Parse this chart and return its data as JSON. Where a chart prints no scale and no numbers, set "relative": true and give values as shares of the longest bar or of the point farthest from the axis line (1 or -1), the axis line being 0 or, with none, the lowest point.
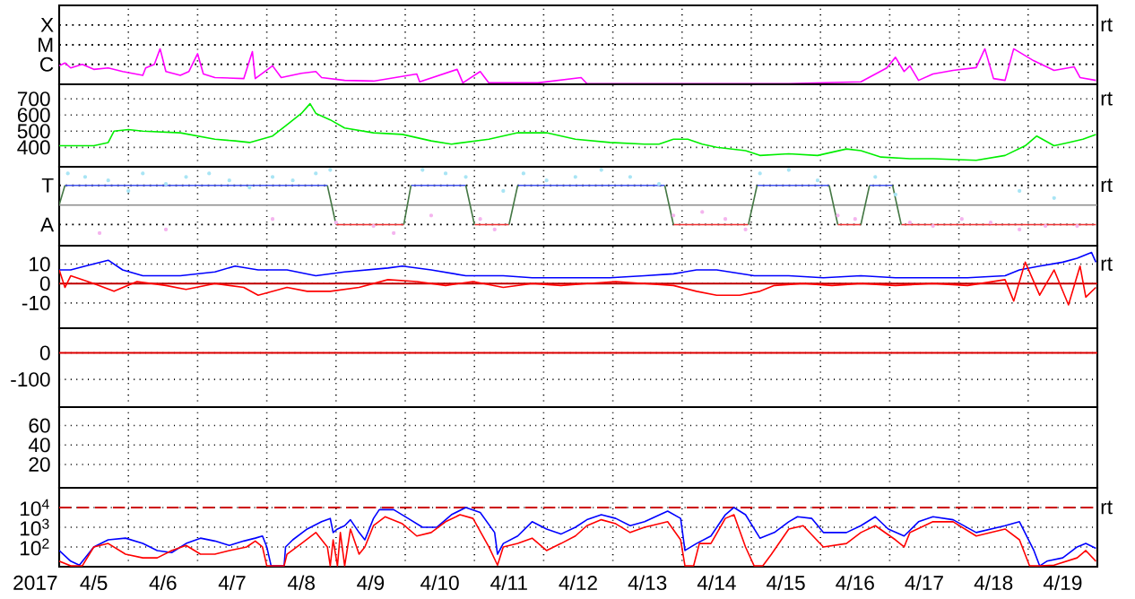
{
  "chart_data": [
    {
      "type": "line",
      "relative": true,
      "grid": "x",
      "tick_labels": "y",
      "xlim": [
        "2017-04-05",
        "2017-04-20"
      ],
      "xticks": [
        {
          "value": "2017-04-06",
          "label": null
        },
        {
          "value": "2017-04-07",
          "label": null
        },
        {
          "value": "2017-04-08",
          "label": null
        },
        {
          "value": "2017-04-09",
          "label": null
        },
        {
          "value": "2017-04-10",
          "label": null
        },
        {
          "value": "2017-04-11",
          "label": null
        },
        {
          "value": "2017-04-12",
          "label": null
        },
        {
          "value": "2017-04-13",
          "label": null
        },
        {
          "value": "2017-04-14",
          "label": null
        },
        {
          "value": "2017-04-15",
          "label": null
        },
        {
          "value": "2017-04-16",
          "label": null
        },
        {
          "value": "2017-04-17",
          "label": null
        },
        {
          "value": "2017-04-18",
          "label": null
        },
        {
          "value": "2017-04-19",
          "label": null
        }
      ],
      "annotations": [
        "rt"
      ],
      "ref_lines": [
        {
          "axis": "y",
          "value": 0.56,
          "label": "C",
          "color": "#000000",
          "line_style": "dotted"
        },
        {
          "axis": "y",
          "value": 1.11,
          "label": "M",
          "color": "#000000",
          "line_style": "dotted"
        },
        {
          "axis": "y",
          "value": 1.67,
          "label": "X",
          "color": "#000000",
          "line_style": "dotted"
        }
      ],
      "series": [
        {
          "color": "#ff00ff",
          "x": [
            "2017-04-05T00:00",
            "2017-04-05T02:00",
            "2017-04-05T04:00",
            "2017-04-05T08:00",
            "2017-04-05T12:00",
            "2017-04-05T17:00",
            "2017-04-05T22:00",
            "2017-04-06T05:00",
            "2017-04-06T06:00",
            "2017-04-06T09:00",
            "2017-04-06T11:00",
            "2017-04-06T13:00",
            "2017-04-06T18:00",
            "2017-04-06T21:00",
            "2017-04-07T00:00",
            "2017-04-07T02:00",
            "2017-04-07T06:00",
            "2017-04-07T16:00",
            "2017-04-07T19:00",
            "2017-04-07T20:00",
            "2017-04-08T02:00",
            "2017-04-08T05:00",
            "2017-04-08T12:00",
            "2017-04-08T17:00",
            "2017-04-08T19:00",
            "2017-04-09T03:00",
            "2017-04-09T13:00",
            "2017-04-10T04:00",
            "2017-04-10T05:00",
            "2017-04-10T18:00",
            "2017-04-10T20:00",
            "2017-04-11T02:00",
            "2017-04-11T05:00",
            "2017-04-11T22:00",
            "2017-04-12T13:00",
            "2017-04-12T15:00",
            "2017-04-13T11:00",
            "2017-04-15T13:00",
            "2017-04-16T14:00",
            "2017-04-16T23:00",
            "2017-04-17T02:00",
            "2017-04-17T05:00",
            "2017-04-17T07:00",
            "2017-04-17T10:00",
            "2017-04-17T15:00",
            "2017-04-17T22:00",
            "2017-04-18T06:00",
            "2017-04-18T09:00",
            "2017-04-18T12:00",
            "2017-04-18T16:00",
            "2017-04-18T19:00",
            "2017-04-19T02:00",
            "2017-04-19T09:00",
            "2017-04-19T16:00",
            "2017-04-19T18:00",
            "2017-04-19T23:30"
          ],
          "values": [
            0.52,
            0.6,
            0.46,
            0.56,
            0.42,
            0.46,
            0.36,
            0.25,
            0.46,
            0.56,
            1,
            0.36,
            0.25,
            0.36,
            0.86,
            0.29,
            0.19,
            0.16,
            0.92,
            0.16,
            0.52,
            0.19,
            0.31,
            0.36,
            0.19,
            0.11,
            0.09,
            0.29,
            0.07,
            0.42,
            0.04,
            0.36,
            0.04,
            0.04,
            0.19,
            0.02,
            0.02,
            0.02,
            0.07,
            0.46,
            0.76,
            0.36,
            0.52,
            0.11,
            0.29,
            0.39,
            0.47,
            1,
            0.16,
            0.11,
            1,
            0.66,
            0.39,
            0.49,
            0.19,
            0.11
          ]
        }
      ]
    },
    {
      "type": "line",
      "grid": true,
      "tick_labels": "y",
      "xlim": [
        "2017-04-05",
        "2017-04-20"
      ],
      "ylim": [
        280,
        790
      ],
      "xticks": [
        {
          "value": "2017-04-06",
          "label": null
        },
        {
          "value": "2017-04-07",
          "label": null
        },
        {
          "value": "2017-04-08",
          "label": null
        },
        {
          "value": "2017-04-09",
          "label": null
        },
        {
          "value": "2017-04-10",
          "label": null
        },
        {
          "value": "2017-04-11",
          "label": null
        },
        {
          "value": "2017-04-12",
          "label": null
        },
        {
          "value": "2017-04-13",
          "label": null
        },
        {
          "value": "2017-04-14",
          "label": null
        },
        {
          "value": "2017-04-15",
          "label": null
        },
        {
          "value": "2017-04-16",
          "label": null
        },
        {
          "value": "2017-04-17",
          "label": null
        },
        {
          "value": "2017-04-18",
          "label": null
        },
        {
          "value": "2017-04-19",
          "label": null
        }
      ],
      "yticks": [
        400,
        500,
        600,
        700
      ],
      "annotations": [
        "rt"
      ],
      "series": [
        {
          "color": "#00ee00",
          "x": [
            "2017-04-05T00:00",
            "2017-04-05T12:00",
            "2017-04-05T17:00",
            "2017-04-05T19:00",
            "2017-04-06T00:00",
            "2017-04-06T05:00",
            "2017-04-06T18:00",
            "2017-04-07T06:00",
            "2017-04-07T13:00",
            "2017-04-07T18:00",
            "2017-04-08T02:00",
            "2017-04-08T07:00",
            "2017-04-08T12:00",
            "2017-04-08T15:00",
            "2017-04-08T17:00",
            "2017-04-08T22:00",
            "2017-04-09T03:00",
            "2017-04-09T13:00",
            "2017-04-09T23:00",
            "2017-04-10T09:00",
            "2017-04-10T16:00",
            "2017-04-11T05:00",
            "2017-04-11T15:00",
            "2017-04-12T01:00",
            "2017-04-12T11:00",
            "2017-04-12T23:00",
            "2017-04-13T11:00",
            "2017-04-13T16:00",
            "2017-04-13T21:00",
            "2017-04-14T02:00",
            "2017-04-14T07:00",
            "2017-04-14T12:00",
            "2017-04-14T22:00",
            "2017-04-15T03:00",
            "2017-04-15T13:00",
            "2017-04-15T23:00",
            "2017-04-16T09:00",
            "2017-04-16T14:00",
            "2017-04-16T21:00",
            "2017-04-17T07:00",
            "2017-04-17T15:00",
            "2017-04-18T06:00",
            "2017-04-18T16:00",
            "2017-04-18T23:00",
            "2017-04-19T03:00",
            "2017-04-19T09:00",
            "2017-04-19T14:00",
            "2017-04-19T19:00",
            "2017-04-19T23:30"
          ],
          "values": [
            410,
            410,
            430,
            500,
            510,
            500,
            490,
            450,
            440,
            430,
            470,
            540,
            610,
            670,
            610,
            570,
            520,
            490,
            480,
            440,
            420,
            450,
            490,
            490,
            450,
            430,
            420,
            420,
            450,
            450,
            420,
            400,
            380,
            350,
            360,
            350,
            390,
            380,
            340,
            330,
            330,
            320,
            350,
            410,
            470,
            410,
            430,
            450,
            480
          ]
        }
      ]
    },
    {
      "type": "line",
      "relative": true,
      "grid": "x",
      "tick_labels": "y",
      "xlim": [
        "2017-04-05",
        "2017-04-20"
      ],
      "xticks": [
        {
          "value": "2017-04-06",
          "label": null
        },
        {
          "value": "2017-04-07",
          "label": null
        },
        {
          "value": "2017-04-08",
          "label": null
        },
        {
          "value": "2017-04-09",
          "label": null
        },
        {
          "value": "2017-04-10",
          "label": null
        },
        {
          "value": "2017-04-11",
          "label": null
        },
        {
          "value": "2017-04-12",
          "label": null
        },
        {
          "value": "2017-04-13",
          "label": null
        },
        {
          "value": "2017-04-14",
          "label": null
        },
        {
          "value": "2017-04-15",
          "label": null
        },
        {
          "value": "2017-04-16",
          "label": null
        },
        {
          "value": "2017-04-17",
          "label": null
        },
        {
          "value": "2017-04-18",
          "label": null
        },
        {
          "value": "2017-04-19",
          "label": null
        }
      ],
      "annotations": [
        "rt"
      ],
      "ref_lines": [
        {
          "axis": "y",
          "value": -0.56,
          "label": "A",
          "color": "#000000",
          "line_style": "dotted"
        },
        {
          "axis": "y",
          "value": 0.56,
          "label": "T",
          "color": "#000000",
          "line_style": "dotted"
        },
        {
          "axis": "y",
          "value": 0,
          "color": "#909090"
        }
      ],
      "series": [
        {
          "type": "scatter",
          "color": "#a8e4f4",
          "x": [
            "2017-04-05T03:00",
            "2017-04-05T09:00",
            "2017-04-05T17:00",
            "2017-04-06T00:00",
            "2017-04-06T05:00",
            "2017-04-06T13:00",
            "2017-04-06T20:00",
            "2017-04-07T04:00",
            "2017-04-07T11:00",
            "2017-04-07T18:00",
            "2017-04-08T02:00",
            "2017-04-08T09:00",
            "2017-04-08T17:00",
            "2017-04-08T22:00",
            "2017-04-10T06:00",
            "2017-04-10T14:00",
            "2017-04-10T21:00",
            "2017-04-11T10:00",
            "2017-04-11T17:00",
            "2017-04-12T01:00",
            "2017-04-12T11:00",
            "2017-04-12T20:00",
            "2017-04-13T06:00",
            "2017-04-13T16:00",
            "2017-04-15T03:00",
            "2017-04-15T13:00",
            "2017-04-15T23:00",
            "2017-04-16T19:00",
            "2017-04-17T02:00",
            "2017-04-18T21:00",
            "2017-04-19T09:00"
          ],
          "values": [
            0.9,
            0.8,
            0.7,
            0.4,
            0.9,
            0.6,
            0.8,
            0.9,
            0.7,
            0.5,
            0.8,
            0.7,
            0.9,
            1,
            1,
            0.9,
            0.8,
            0.4,
            0.9,
            0.7,
            0.8,
            1,
            0.8,
            0.6,
            0.9,
            1,
            0.7,
            0.8,
            0.3,
            0.4,
            0.2
          ]
        },
        {
          "type": "scatter",
          "color": "#f4b4ee",
          "x": [
            "2017-04-05T14:00",
            "2017-04-06T13:00",
            "2017-04-08T02:00",
            "2017-04-09T00:00",
            "2017-04-09T13:00",
            "2017-04-09T20:00",
            "2017-04-10T09:00",
            "2017-04-11T02:00",
            "2017-04-11T07:00",
            "2017-04-13T21:00",
            "2017-04-14T07:00",
            "2017-04-14T15:00",
            "2017-04-14T22:00",
            "2017-04-16T06:00",
            "2017-04-16T12:00",
            "2017-04-17T07:00",
            "2017-04-17T15:00",
            "2017-04-18T01:00",
            "2017-04-18T11:00",
            "2017-04-18T21:00",
            "2017-04-19T06:00",
            "2017-04-19T17:00"
          ],
          "values": [
            -0.8,
            -0.7,
            -0.4,
            -0.5,
            -0.6,
            -0.8,
            -0.3,
            -0.4,
            -0.7,
            -0.3,
            -0.2,
            -0.4,
            -0.7,
            -0.3,
            -0.4,
            -0.5,
            -0.6,
            -0.4,
            -0.5,
            -0.7,
            -0.6,
            -0.6
          ]
        },
        {
          "color": "#4455ee",
          "x": [
            "2017-04-05T02:00",
            "2017-04-08T21:00",
            "2017-04-08T22:00",
            "2017-04-10T02:00",
            "2017-04-10T21:00",
            "2017-04-10T22:00",
            "2017-04-11T15:00",
            "2017-04-13T18:00",
            "2017-04-13T19:00",
            "2017-04-15T02:00",
            "2017-04-16T03:00",
            "2017-04-16T04:00",
            "2017-04-16T17:00",
            "2017-04-17T01:00"
          ],
          "values": [
            0.56,
            0.56,
            null,
            0.56,
            0.56,
            null,
            0.56,
            0.56,
            null,
            0.56,
            0.56,
            null,
            0.56,
            0.56
          ]
        },
        {
          "color": "#ee3333",
          "x": [
            "2017-04-09T00:00",
            "2017-04-09T23:30",
            "2017-04-10T00:00",
            "2017-04-11T00:00",
            "2017-04-11T12:00",
            "2017-04-11T12:30",
            "2017-04-13T21:00",
            "2017-04-14T23:00",
            "2017-04-15T00:00",
            "2017-04-16T06:00",
            "2017-04-16T14:00",
            "2017-04-16T14:30",
            "2017-04-17T04:00",
            "2017-04-19T23:30"
          ],
          "values": [
            -0.56,
            -0.56,
            null,
            -0.56,
            -0.56,
            null,
            -0.56,
            -0.56,
            null,
            -0.56,
            -0.56,
            null,
            -0.56,
            -0.56
          ]
        },
        {
          "color": "#447744",
          "x": [
            "2017-04-05T00:00",
            "2017-04-05T02:00",
            "2017-04-05T03:00",
            "2017-04-08T21:00",
            "2017-04-09T00:00",
            "2017-04-09T12:00",
            "2017-04-09T23:30",
            "2017-04-10T02:00",
            "2017-04-10T12:00",
            "2017-04-10T21:00",
            "2017-04-11T00:00",
            "2017-04-11T05:00",
            "2017-04-11T12:00",
            "2017-04-11T15:00",
            "2017-04-12T00:00",
            "2017-04-13T18:00",
            "2017-04-13T21:00",
            "2017-04-14T00:00",
            "2017-04-14T23:00",
            "2017-04-15T02:00",
            "2017-04-15T12:00",
            "2017-04-16T03:00",
            "2017-04-16T06:00",
            "2017-04-16T10:00",
            "2017-04-16T14:00",
            "2017-04-16T17:00",
            "2017-04-16T22:00",
            "2017-04-17T01:00",
            "2017-04-17T04:00"
          ],
          "values": [
            0,
            0.56,
            null,
            0.56,
            -0.56,
            null,
            -0.56,
            0.56,
            null,
            0.56,
            -0.56,
            null,
            -0.56,
            0.56,
            null,
            0.56,
            -0.56,
            null,
            -0.56,
            0.56,
            null,
            0.56,
            -0.56,
            null,
            -0.56,
            0.56,
            null,
            0.56,
            -0.56
          ]
        }
      ]
    },
    {
      "type": "line",
      "grid": true,
      "tick_labels": "y",
      "xlim": [
        "2017-04-05",
        "2017-04-20"
      ],
      "ylim": [
        -23,
        19.5
      ],
      "xticks": [
        {
          "value": "2017-04-06",
          "label": null
        },
        {
          "value": "2017-04-07",
          "label": null
        },
        {
          "value": "2017-04-08",
          "label": null
        },
        {
          "value": "2017-04-09",
          "label": null
        },
        {
          "value": "2017-04-10",
          "label": null
        },
        {
          "value": "2017-04-11",
          "label": null
        },
        {
          "value": "2017-04-12",
          "label": null
        },
        {
          "value": "2017-04-13",
          "label": null
        },
        {
          "value": "2017-04-14",
          "label": null
        },
        {
          "value": "2017-04-15",
          "label": null
        },
        {
          "value": "2017-04-16",
          "label": null
        },
        {
          "value": "2017-04-17",
          "label": null
        },
        {
          "value": "2017-04-18",
          "label": null
        },
        {
          "value": "2017-04-19",
          "label": null
        }
      ],
      "yticks": [
        -10,
        0,
        10
      ],
      "annotations": [
        "rt"
      ],
      "ref_lines": [
        {
          "axis": "y",
          "value": 0,
          "color": "#c00000"
        }
      ],
      "series": [
        {
          "color": "#0000ff",
          "x": [
            "2017-04-05T00:00",
            "2017-04-05T04:00",
            "2017-04-05T09:00",
            "2017-04-05T17:00",
            "2017-04-05T22:00",
            "2017-04-06T05:00",
            "2017-04-06T18:00",
            "2017-04-07T06:00",
            "2017-04-07T13:00",
            "2017-04-07T21:00",
            "2017-04-08T07:00",
            "2017-04-08T17:00",
            "2017-04-09T03:00",
            "2017-04-09T18:00",
            "2017-04-09T23:00",
            "2017-04-10T09:00",
            "2017-04-10T21:00",
            "2017-04-11T10:00",
            "2017-04-11T20:00",
            "2017-04-12T11:00",
            "2017-04-12T23:00",
            "2017-04-13T11:00",
            "2017-04-13T21:00",
            "2017-04-14T05:00",
            "2017-04-14T12:00",
            "2017-04-15T01:00",
            "2017-04-15T13:00",
            "2017-04-16T01:00",
            "2017-04-16T14:00",
            "2017-04-17T02:00",
            "2017-04-17T15:00",
            "2017-04-18T03:00",
            "2017-04-18T16:00",
            "2017-04-18T21:00",
            "2017-04-19T04:00",
            "2017-04-19T12:00",
            "2017-04-19T17:00",
            "2017-04-19T22:00",
            "2017-04-19T23:30"
          ],
          "values": [
            7,
            7,
            9,
            12,
            7,
            4,
            4,
            6,
            9,
            7,
            7,
            4,
            6,
            8,
            9,
            7,
            4,
            4,
            3,
            3,
            3,
            4,
            5,
            7,
            7,
            4,
            4,
            3,
            4,
            3,
            3,
            3,
            4,
            7,
            9,
            11,
            13,
            16,
            11
          ]
        },
        {
          "color": "#ff0000",
          "x": [
            "2017-04-05T00:00",
            "2017-04-05T02:00",
            "2017-04-05T04:00",
            "2017-04-05T12:00",
            "2017-04-05T19:00",
            "2017-04-06T03:00",
            "2017-04-06T13:00",
            "2017-04-06T20:00",
            "2017-04-07T06:00",
            "2017-04-07T16:00",
            "2017-04-07T21:00",
            "2017-04-08T07:00",
            "2017-04-08T14:00",
            "2017-04-08T22:00",
            "2017-04-09T08:00",
            "2017-04-09T18:00",
            "2017-04-10T04:00",
            "2017-04-10T14:00",
            "2017-04-10T23:30",
            "2017-04-11T10:00",
            "2017-04-11T20:00",
            "2017-04-12T06:00",
            "2017-04-12T15:00",
            "2017-04-13T01:00",
            "2017-04-13T11:00",
            "2017-04-13T21:00",
            "2017-04-14T05:00",
            "2017-04-14T12:00",
            "2017-04-14T20:00",
            "2017-04-15T03:00",
            "2017-04-15T08:00",
            "2017-04-15T18:00",
            "2017-04-16T04:00",
            "2017-04-16T14:00",
            "2017-04-17T02:00",
            "2017-04-17T15:00",
            "2017-04-18T03:00",
            "2017-04-18T16:00",
            "2017-04-18T19:00",
            "2017-04-18T23:00",
            "2017-04-19T04:00",
            "2017-04-19T09:00",
            "2017-04-19T14:00",
            "2017-04-19T18:00",
            "2017-04-19T20:00",
            "2017-04-19T23:30"
          ],
          "values": [
            7,
            -2,
            4,
            0,
            -4,
            1,
            -1,
            -3,
            0,
            -2,
            -6,
            -2,
            -4,
            -4,
            -2,
            2,
            1,
            -1,
            1,
            -2,
            0,
            -1,
            0,
            1,
            0,
            -1,
            -4,
            -6,
            -6,
            -4,
            -1,
            0,
            -1,
            0,
            -1,
            0,
            -1,
            2,
            -9,
            11,
            -6,
            7,
            -11,
            9,
            -7,
            -2
          ]
        }
      ]
    },
    {
      "type": "line",
      "grid": true,
      "tick_labels": "y",
      "xlim": [
        "2017-04-05",
        "2017-04-20"
      ],
      "ylim": [
        -204,
        93
      ],
      "xticks": [
        {
          "value": "2017-04-06",
          "label": null
        },
        {
          "value": "2017-04-07",
          "label": null
        },
        {
          "value": "2017-04-08",
          "label": null
        },
        {
          "value": "2017-04-09",
          "label": null
        },
        {
          "value": "2017-04-10",
          "label": null
        },
        {
          "value": "2017-04-11",
          "label": null
        },
        {
          "value": "2017-04-12",
          "label": null
        },
        {
          "value": "2017-04-13",
          "label": null
        },
        {
          "value": "2017-04-14",
          "label": null
        },
        {
          "value": "2017-04-15",
          "label": null
        },
        {
          "value": "2017-04-16",
          "label": null
        },
        {
          "value": "2017-04-17",
          "label": null
        },
        {
          "value": "2017-04-18",
          "label": null
        },
        {
          "value": "2017-04-19",
          "label": null
        }
      ],
      "yticks": [
        -100,
        0
      ],
      "ref_lines": [
        {
          "axis": "y",
          "value": 0,
          "color": "#dd0000"
        }
      ]
    },
    {
      "type": "line",
      "grid": true,
      "tick_labels": "y",
      "xlim": [
        "2017-04-05",
        "2017-04-20"
      ],
      "ylim": [
        -4,
        79
      ],
      "xticks": [
        {
          "value": "2017-04-06",
          "label": null
        },
        {
          "value": "2017-04-07",
          "label": null
        },
        {
          "value": "2017-04-08",
          "label": null
        },
        {
          "value": "2017-04-09",
          "label": null
        },
        {
          "value": "2017-04-10",
          "label": null
        },
        {
          "value": "2017-04-11",
          "label": null
        },
        {
          "value": "2017-04-12",
          "label": null
        },
        {
          "value": "2017-04-13",
          "label": null
        },
        {
          "value": "2017-04-14",
          "label": null
        },
        {
          "value": "2017-04-15",
          "label": null
        },
        {
          "value": "2017-04-16",
          "label": null
        },
        {
          "value": "2017-04-17",
          "label": null
        },
        {
          "value": "2017-04-18",
          "label": null
        },
        {
          "value": "2017-04-19",
          "label": null
        }
      ],
      "yticks": [
        20,
        40,
        60
      ]
    },
    {
      "type": "line",
      "log": true,
      "grid": true,
      "xlim": [
        "2017-04-05",
        "2017-04-20"
      ],
      "ylim": [
        10,
        100000
      ],
      "xlabel": "2017",
      "xticks": [
        {
          "value": "2017-04-05T12:00",
          "label": "4/5"
        },
        {
          "value": "2017-04-06",
          "label": null
        },
        {
          "value": "2017-04-06T12:00",
          "label": "4/6"
        },
        {
          "value": "2017-04-07",
          "label": null
        },
        {
          "value": "2017-04-07T12:00",
          "label": "4/7"
        },
        {
          "value": "2017-04-08",
          "label": null
        },
        {
          "value": "2017-04-08T12:00",
          "label": "4/8"
        },
        {
          "value": "2017-04-09",
          "label": null
        },
        {
          "value": "2017-04-09T12:00",
          "label": "4/9"
        },
        {
          "value": "2017-04-10",
          "label": null
        },
        {
          "value": "2017-04-10T12:00",
          "label": "4/10"
        },
        {
          "value": "2017-04-11",
          "label": null
        },
        {
          "value": "2017-04-11T12:00",
          "label": "4/11"
        },
        {
          "value": "2017-04-12",
          "label": null
        },
        {
          "value": "2017-04-12T12:00",
          "label": "4/12"
        },
        {
          "value": "2017-04-13",
          "label": null
        },
        {
          "value": "2017-04-13T12:00",
          "label": "4/13"
        },
        {
          "value": "2017-04-14",
          "label": null
        },
        {
          "value": "2017-04-14T12:00",
          "label": "4/14"
        },
        {
          "value": "2017-04-15",
          "label": null
        },
        {
          "value": "2017-04-15T12:00",
          "label": "4/15"
        },
        {
          "value": "2017-04-16",
          "label": null
        },
        {
          "value": "2017-04-16T12:00",
          "label": "4/16"
        },
        {
          "value": "2017-04-17",
          "label": null
        },
        {
          "value": "2017-04-17T12:00",
          "label": "4/17"
        },
        {
          "value": "2017-04-18",
          "label": null
        },
        {
          "value": "2017-04-18T12:00",
          "label": "4/18"
        },
        {
          "value": "2017-04-19",
          "label": null
        },
        {
          "value": "2017-04-19T12:00",
          "label": "4/19"
        }
      ],
      "yticks": [
        {
          "value": 100,
          "label": "10$^{2}$"
        },
        {
          "value": 1000,
          "label": "10$^{3}$"
        },
        {
          "value": 10000,
          "label": "10$^{4}$"
        }
      ],
      "annotations": [
        "rt"
      ],
      "ref_lines": [
        {
          "axis": "y",
          "value": 10000,
          "color": "#cc0000",
          "line_style": "dashed"
        }
      ],
      "series": [
        {
          "color": "#0000ff",
          "x": [
            "2017-04-05T00:00",
            "2017-04-05T04:00",
            "2017-04-05T07:00",
            "2017-04-05T12:00",
            "2017-04-05T17:00",
            "2017-04-05T23:00",
            "2017-04-06T05:00",
            "2017-04-06T10:00",
            "2017-04-06T15:00",
            "2017-04-06T20:00",
            "2017-04-07T01:00",
            "2017-04-07T06:00",
            "2017-04-07T11:00",
            "2017-04-07T16:00",
            "2017-04-07T20:00",
            "2017-04-07T22:30",
            "2017-04-08T00:00",
            "2017-04-08T01:30",
            "2017-04-08T06:00",
            "2017-04-08T06:30",
            "2017-04-08T09:00",
            "2017-04-08T14:00",
            "2017-04-08T19:00",
            "2017-04-08T22:00",
            "2017-04-08T23:00",
            "2017-04-09T00:30",
            "2017-04-09T03:00",
            "2017-04-09T05:00",
            "2017-04-09T08:00",
            "2017-04-09T10:00",
            "2017-04-09T13:00",
            "2017-04-09T15:00",
            "2017-04-09T20:00",
            "2017-04-10T01:00",
            "2017-04-10T06:00",
            "2017-04-10T11:00",
            "2017-04-10T16:00",
            "2017-04-10T21:00",
            "2017-04-11T02:00",
            "2017-04-11T07:00",
            "2017-04-11T08:00",
            "2017-04-11T10:00",
            "2017-04-11T15:00",
            "2017-04-11T20:00",
            "2017-04-12T01:00",
            "2017-04-12T06:00",
            "2017-04-12T11:00",
            "2017-04-12T15:00",
            "2017-04-12T20:00",
            "2017-04-13T01:00",
            "2017-04-13T06:00",
            "2017-04-13T11:00",
            "2017-04-13T19:00",
            "2017-04-13T23:30",
            "2017-04-14T01:00",
            "2017-04-14T05:00",
            "2017-04-14T10:00",
            "2017-04-14T15:00",
            "2017-04-14T18:00",
            "2017-04-14T22:00",
            "2017-04-15T03:00",
            "2017-04-15T08:00",
            "2017-04-15T13:00",
            "2017-04-15T16:00",
            "2017-04-15T21:00",
            "2017-04-16T01:00",
            "2017-04-16T09:00",
            "2017-04-16T14:00",
            "2017-04-16T19:00",
            "2017-04-16T23:30",
            "2017-04-17T05:00",
            "2017-04-17T10:00",
            "2017-04-17T15:00",
            "2017-04-17T22:00",
            "2017-04-18T06:00",
            "2017-04-18T16:00",
            "2017-04-18T21:00",
            "2017-04-19T02:00",
            "2017-04-19T04:00",
            "2017-04-19T06:30",
            "2017-04-19T12:00",
            "2017-04-19T17:00",
            "2017-04-19T20:00",
            "2017-04-19T23:30"
          ],
          "values": [
            66,
            19,
            12,
            100,
            230,
            280,
            150,
            66,
            52,
            150,
            280,
            200,
            120,
            200,
            280,
            360,
            100,
            11,
            11,
            100,
            230,
            810,
            1900,
            2800,
            540,
            810,
            1200,
            2400,
            540,
            230,
            2800,
            7800,
            7800,
            2800,
            1000,
            1000,
            4300,
            10000,
            5600,
            540,
            43,
            150,
            360,
            1900,
            810,
            450,
            1000,
            2400,
            4300,
            2800,
            1200,
            1900,
            6600,
            2800,
            66,
            150,
            360,
            4300,
            10000,
            4300,
            280,
            540,
            1900,
            3400,
            2800,
            540,
            540,
            1200,
            3400,
            810,
            360,
            1900,
            3400,
            2400,
            540,
            1200,
            1900,
            66,
            11,
            19,
            28,
            100,
            150,
            85
          ]
        },
        {
          "color": "#ff0000",
          "x": [
            "2017-04-05T00:00",
            "2017-04-05T04:00",
            "2017-04-05T08:00",
            "2017-04-05T12:00",
            "2017-04-05T17:00",
            "2017-04-05T23:00",
            "2017-04-06T05:00",
            "2017-04-06T10:00",
            "2017-04-06T15:00",
            "2017-04-06T20:00",
            "2017-04-07T01:00",
            "2017-04-07T06:00",
            "2017-04-07T11:00",
            "2017-04-07T17:00",
            "2017-04-07T20:00",
            "2017-04-07T22:30",
            "2017-04-08T00:00",
            "2017-04-08T06:00",
            "2017-04-08T07:00",
            "2017-04-08T12:00",
            "2017-04-08T17:00",
            "2017-04-08T21:00",
            "2017-04-08T22:00",
            "2017-04-08T23:00",
            "2017-04-09T00:30",
            "2017-04-09T01:30",
            "2017-04-09T03:00",
            "2017-04-09T05:00",
            "2017-04-09T08:00",
            "2017-04-09T10:00",
            "2017-04-09T13:00",
            "2017-04-09T17:00",
            "2017-04-09T23:00",
            "2017-04-10T04:00",
            "2017-04-10T09:00",
            "2017-04-10T14:00",
            "2017-04-10T19:00",
            "2017-04-10T23:30",
            "2017-04-11T05:00",
            "2017-04-11T08:00",
            "2017-04-11T10:00",
            "2017-04-11T15:00",
            "2017-04-11T20:00",
            "2017-04-12T01:00",
            "2017-04-12T06:00",
            "2017-04-12T11:00",
            "2017-04-12T15:00",
            "2017-04-12T20:00",
            "2017-04-13T01:00",
            "2017-04-13T06:00",
            "2017-04-13T11:00",
            "2017-04-13T19:00",
            "2017-04-13T23:30",
            "2017-04-14T01:00",
            "2017-04-14T04:00",
            "2017-04-14T06:00",
            "2017-04-14T10:00",
            "2017-04-14T15:00",
            "2017-04-14T18:00",
            "2017-04-14T22:00",
            "2017-04-15T01:00",
            "2017-04-15T04:00",
            "2017-04-15T07:00",
            "2017-04-15T13:00",
            "2017-04-15T18:00",
            "2017-04-16T01:00",
            "2017-04-16T09:00",
            "2017-04-16T14:00",
            "2017-04-16T19:00",
            "2017-04-17T02:00",
            "2017-04-17T05:00",
            "2017-04-17T07:00",
            "2017-04-17T15:00",
            "2017-04-17T22:00",
            "2017-04-18T06:00",
            "2017-04-18T11:00",
            "2017-04-18T16:00",
            "2017-04-18T21:00",
            "2017-04-19T00:30",
            "2017-04-19T04:00",
            "2017-04-19T09:00",
            "2017-04-19T17:00",
            "2017-04-19T20:00",
            "2017-04-19T23:30"
          ],
          "values": [
            19,
            11,
            11,
            100,
            150,
            43,
            28,
            28,
            66,
            120,
            43,
            43,
            66,
            100,
            200,
            100,
            11,
            11,
            43,
            150,
            540,
            100,
            11,
            230,
            11,
            540,
            11,
            810,
            43,
            100,
            1200,
            3400,
            1500,
            360,
            540,
            1900,
            4300,
            2800,
            100,
            12,
            100,
            150,
            280,
            66,
            150,
            360,
            1200,
            2400,
            1500,
            540,
            1000,
            1900,
            230,
            11,
            11,
            150,
            150,
            2800,
            4300,
            100,
            11,
            11,
            43,
            810,
            1200,
            100,
            150,
            540,
            1200,
            230,
            100,
            540,
            1900,
            1900,
            360,
            540,
            810,
            230,
            11,
            11,
            12,
            28,
            66,
            19
          ]
        }
      ]
    }
  ]
}
